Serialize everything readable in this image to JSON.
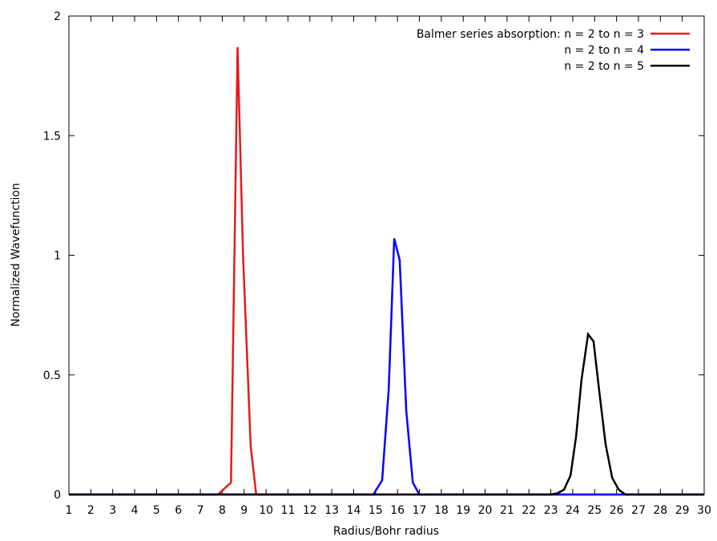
{
  "chart_data": {
    "type": "line",
    "title": "",
    "xlabel": "Radius/Bohr radius",
    "ylabel": "Normalized Wavefunction",
    "xlim": [
      1,
      30
    ],
    "ylim": [
      0,
      2
    ],
    "xticks": [
      1,
      2,
      3,
      4,
      5,
      6,
      7,
      8,
      9,
      10,
      11,
      12,
      13,
      14,
      15,
      16,
      17,
      18,
      19,
      20,
      21,
      22,
      23,
      24,
      25,
      26,
      27,
      28,
      29,
      30
    ],
    "yticks": [
      {
        "value": 0,
        "label": "0"
      },
      {
        "value": 0.5,
        "label": "0.5"
      },
      {
        "value": 1,
        "label": "1"
      },
      {
        "value": 1.5,
        "label": "1.5"
      },
      {
        "value": 2,
        "label": "2"
      }
    ],
    "grid": false,
    "legend_position": "top-right",
    "series": [
      {
        "name": "Balmer series absorption: n = 2 to n = 3",
        "color": "#e41a1c",
        "x": [
          1,
          7.8,
          8.4,
          8.7,
          8.95,
          9.3,
          9.55,
          30
        ],
        "y": [
          0,
          0,
          0.05,
          1.87,
          1.0,
          0.2,
          0,
          0
        ]
      },
      {
        "name": "n = 2 to n = 4",
        "color": "#0000ff",
        "x": [
          1,
          14.9,
          15.3,
          15.6,
          15.85,
          16.1,
          16.4,
          16.7,
          17.0,
          30
        ],
        "y": [
          0,
          0,
          0.06,
          0.44,
          1.07,
          0.98,
          0.35,
          0.05,
          0,
          0
        ]
      },
      {
        "name": "n = 2 to n = 5",
        "color": "#000000",
        "x": [
          1,
          23.0,
          23.3,
          23.6,
          23.9,
          24.15,
          24.4,
          24.7,
          24.95,
          25.2,
          25.5,
          25.8,
          26.1,
          26.4,
          30
        ],
        "y": [
          0,
          0,
          0.005,
          0.02,
          0.08,
          0.24,
          0.48,
          0.67,
          0.64,
          0.44,
          0.21,
          0.07,
          0.02,
          0,
          0
        ]
      }
    ]
  }
}
